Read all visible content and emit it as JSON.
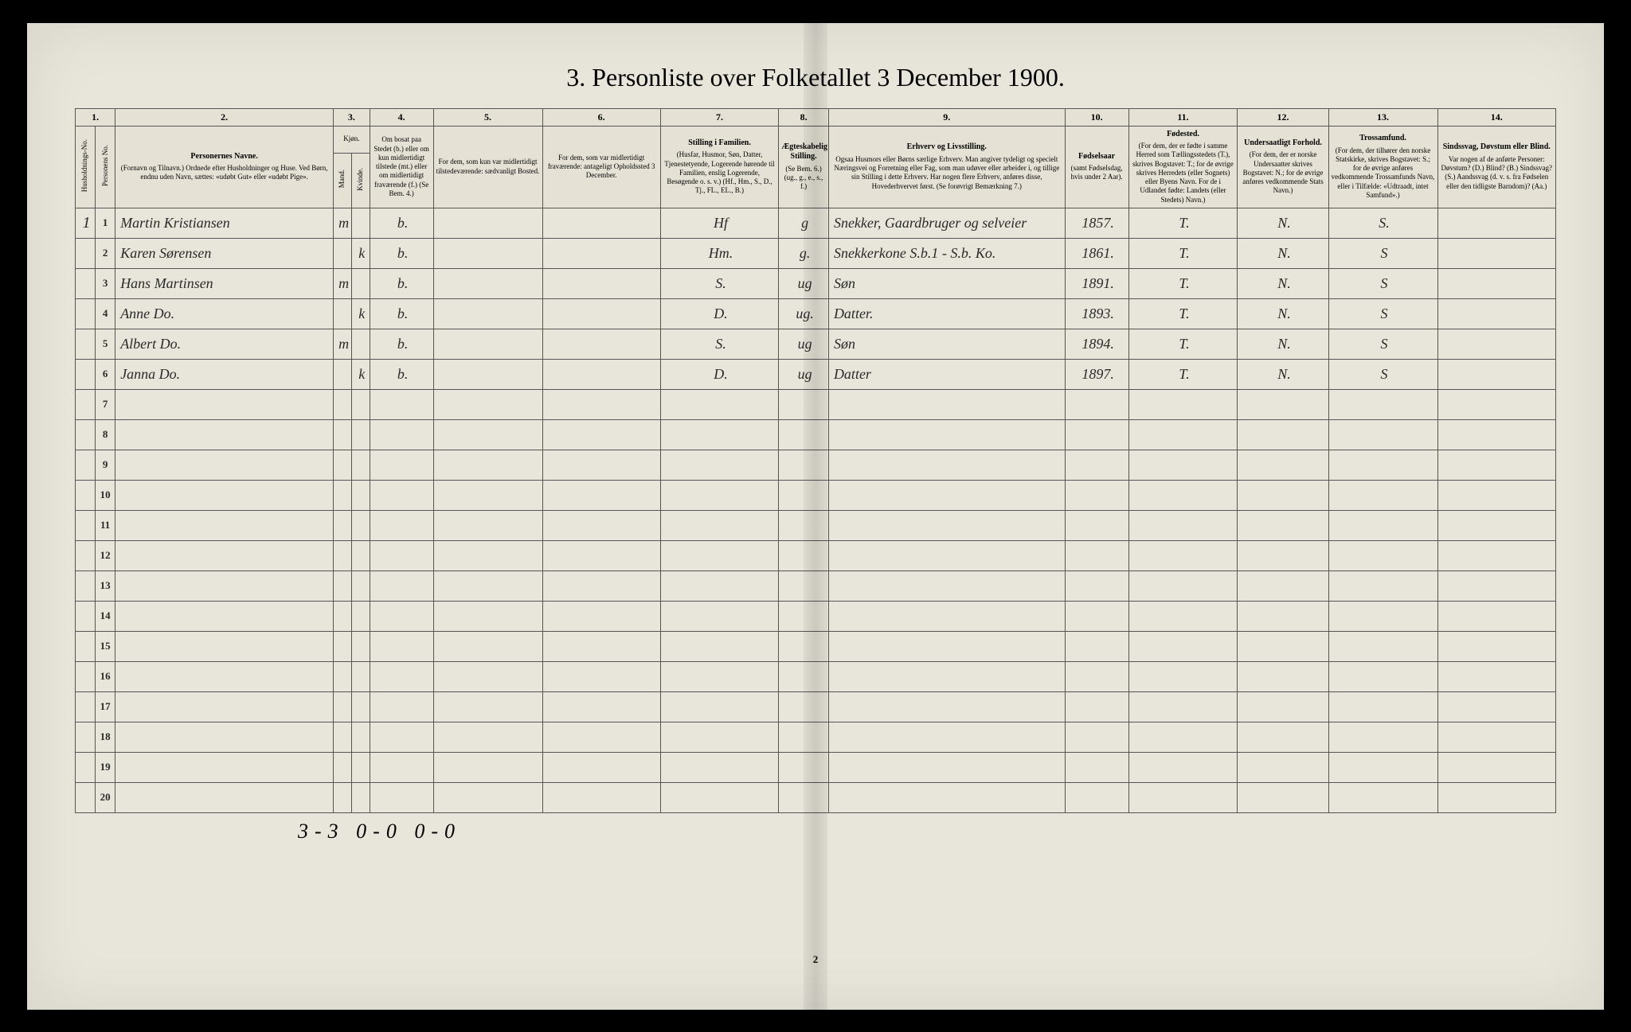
{
  "title": "3.  Personliste over Folketallet 3 December 1900.",
  "colnums": [
    "1.",
    "2.",
    "3.",
    "4.",
    "5.",
    "6.",
    "7.",
    "8.",
    "9.",
    "10.",
    "11.",
    "12.",
    "13.",
    "14."
  ],
  "headers": {
    "c1a": "Husholdnings-No.",
    "c1b": "Personens No.",
    "c2t": "Personernes Navne.",
    "c2": "(Fornavn og Tilnavn.)\nOrdnede efter Husholdninger og Huse.\nVed Børn, endnu uden Navn, sættes: «udøbt Gut» eller «udøbt Pige».",
    "c3t": "Kjøn.",
    "c3a": "Mand.",
    "c3b": "Kvinde.",
    "c4": "Om bosat paa Stedet (b.) eller om kun midlertidigt tilstede (mt.) eller om midlertidigt fraværende (f.)\n(Se Bem. 4.)",
    "c5": "For dem, som kun var midlertidigt tilstedeværende:\nsædvanligt Bosted.",
    "c6": "For dem, som var midlertidigt fraværende:\nantageligt Opholdssted 3 December.",
    "c7t": "Stilling i Familien.",
    "c7": "(Husfar, Husmor, Søn, Datter, Tjenestetyende, Logerende hørende til Familien, enslig Logerende, Besøgende o. s. v.)\n(Hf., Hm., S., D., Tj., FL., EL., B.)",
    "c8t": "Ægteskabelig Stilling.",
    "c8": "(Se Bem. 6.)\n(ug., g., e., s., f.)",
    "c9t": "Erhverv og Livsstilling.",
    "c9": "Ogsaa Husmors eller Børns særlige Erhverv. Man angiver tydeligt og specielt Næringsvei og Forretning eller Fag, som man udøver eller arbeider i, og tillige sin Stilling i dette Erhverv. Har nogen flere Erhverv, anføres disse, Hovederhvervet først.\n(Se forøvrigt Bemærkning 7.)",
    "c10t": "Fødselsaar",
    "c10": "(samt Fødselsdag, hvis under 2 Aar).",
    "c11t": "Fødested.",
    "c11": "(For dem, der er fødte i samme Herred som Tællingsstedets (T.), skrives Bogstavet: T.; for de øvrige skrives Herredets (eller Sognets) eller Byens Navn. For de i Udlandet fødte: Landets (eller Stedets) Navn.)",
    "c12t": "Undersaatligt Forhold.",
    "c12": "(For dem, der er norske Undersaatter skrives Bogstavet: N.; for de øvrige anføres vedkommende Stats Navn.)",
    "c13t": "Trossamfund.",
    "c13": "(For dem, der tilhører den norske Statskirke, skrives Bogstavet: S.; for de øvrige anføres vedkommende Trossamfunds Navn, eller i Tilfælde: «Udtraadt, intet Samfund».)",
    "c14t": "Sindssvag, Døvstum eller Blind.",
    "c14": "Var nogen af de anførte Personer:\nDøvstum? (D.)\nBlind? (B.)\nSindssvag? (S.)\nAandssvag (d. v. s. fra Fødselen eller den tidligste Barndom)? (Aa.)"
  },
  "rows": [
    {
      "n": "1",
      "hh": "1",
      "name": "Martin Kristiansen",
      "m": "m",
      "k": "",
      "b": "b.",
      "c7": "Hf",
      "c8": "g",
      "c9": "Snekker, Gaardbruger og selveier",
      "c10": "1857.",
      "c11": "T.",
      "c12": "N.",
      "c13": "S."
    },
    {
      "n": "2",
      "hh": "",
      "name": "Karen Sørensen",
      "m": "",
      "k": "k",
      "b": "b.",
      "c7": "Hm.",
      "c8": "g.",
      "c9": "Snekkerkone  S.b.1 - S.b. Ko.",
      "c10": "1861.",
      "c11": "T.",
      "c12": "N.",
      "c13": "S"
    },
    {
      "n": "3",
      "hh": "",
      "name": "Hans Martinsen",
      "m": "m",
      "k": "",
      "b": "b.",
      "c7": "S.",
      "c8": "ug",
      "c9": "Søn",
      "c10": "1891.",
      "c11": "T.",
      "c12": "N.",
      "c13": "S"
    },
    {
      "n": "4",
      "hh": "",
      "name": "Anne    Do.",
      "m": "",
      "k": "k",
      "b": "b.",
      "c7": "D.",
      "c8": "ug.",
      "c9": "Datter.",
      "c10": "1893.",
      "c11": "T.",
      "c12": "N.",
      "c13": "S"
    },
    {
      "n": "5",
      "hh": "",
      "name": "Albert   Do.",
      "m": "m",
      "k": "",
      "b": "b.",
      "c7": "S.",
      "c8": "ug",
      "c9": "Søn",
      "c10": "1894.",
      "c11": "T.",
      "c12": "N.",
      "c13": "S"
    },
    {
      "n": "6",
      "hh": "",
      "name": "Janna   Do.",
      "m": "",
      "k": "k",
      "b": "b.",
      "c7": "D.",
      "c8": "ug",
      "c9": "Datter",
      "c10": "1897.",
      "c11": "T.",
      "c12": "N.",
      "c13": "S"
    },
    {
      "n": "7"
    },
    {
      "n": "8"
    },
    {
      "n": "9"
    },
    {
      "n": "10"
    },
    {
      "n": "11"
    },
    {
      "n": "12"
    },
    {
      "n": "13"
    },
    {
      "n": "14"
    },
    {
      "n": "15"
    },
    {
      "n": "16"
    },
    {
      "n": "17"
    },
    {
      "n": "18"
    },
    {
      "n": "19"
    },
    {
      "n": "20"
    }
  ],
  "footer": "3-3  0-0  0-0",
  "pagenum": "2",
  "widths": {
    "c1a": "22px",
    "c1b": "22px",
    "c2": "240px",
    "c3a": "20px",
    "c3b": "20px",
    "c4": "70px",
    "c5": "120px",
    "c6": "130px",
    "c7": "130px",
    "c8": "55px",
    "c9": "260px",
    "c10": "70px",
    "c11": "120px",
    "c12": "100px",
    "c13": "120px",
    "c14": "130px"
  }
}
